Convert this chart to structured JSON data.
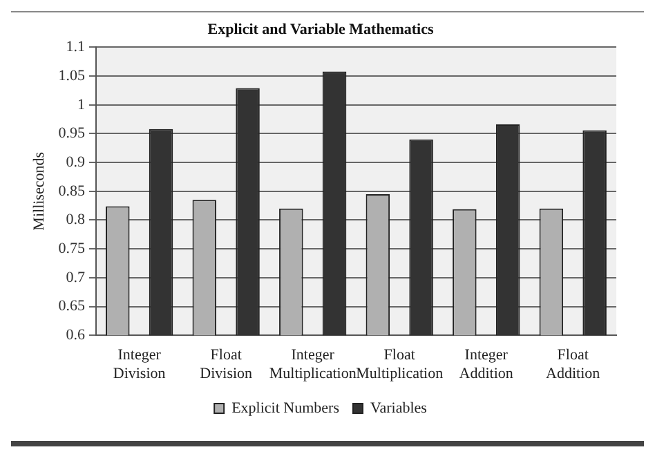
{
  "chart_data": {
    "type": "bar",
    "title": "Explicit and Variable Mathematics",
    "ylabel": "Milliseconds",
    "categories": [
      "Integer Division",
      "Float Division",
      "Integer Multiplication",
      "Float Multiplication",
      "Integer Addition",
      "Float Addition"
    ],
    "series": [
      {
        "name": "Explicit Numbers",
        "color": "#b0b0b0",
        "values": [
          0.824,
          0.835,
          0.82,
          0.845,
          0.819,
          0.82
        ]
      },
      {
        "name": "Variables",
        "color": "#333333",
        "values": [
          0.958,
          1.029,
          1.058,
          0.94,
          0.966,
          0.956
        ]
      }
    ],
    "ylim": [
      0.6,
      1.1
    ],
    "yticks": [
      0.6,
      0.65,
      0.7,
      0.75,
      0.8,
      0.85,
      0.9,
      0.95,
      1,
      1.05,
      1.1
    ],
    "grid": "y",
    "legend": "bottom"
  }
}
